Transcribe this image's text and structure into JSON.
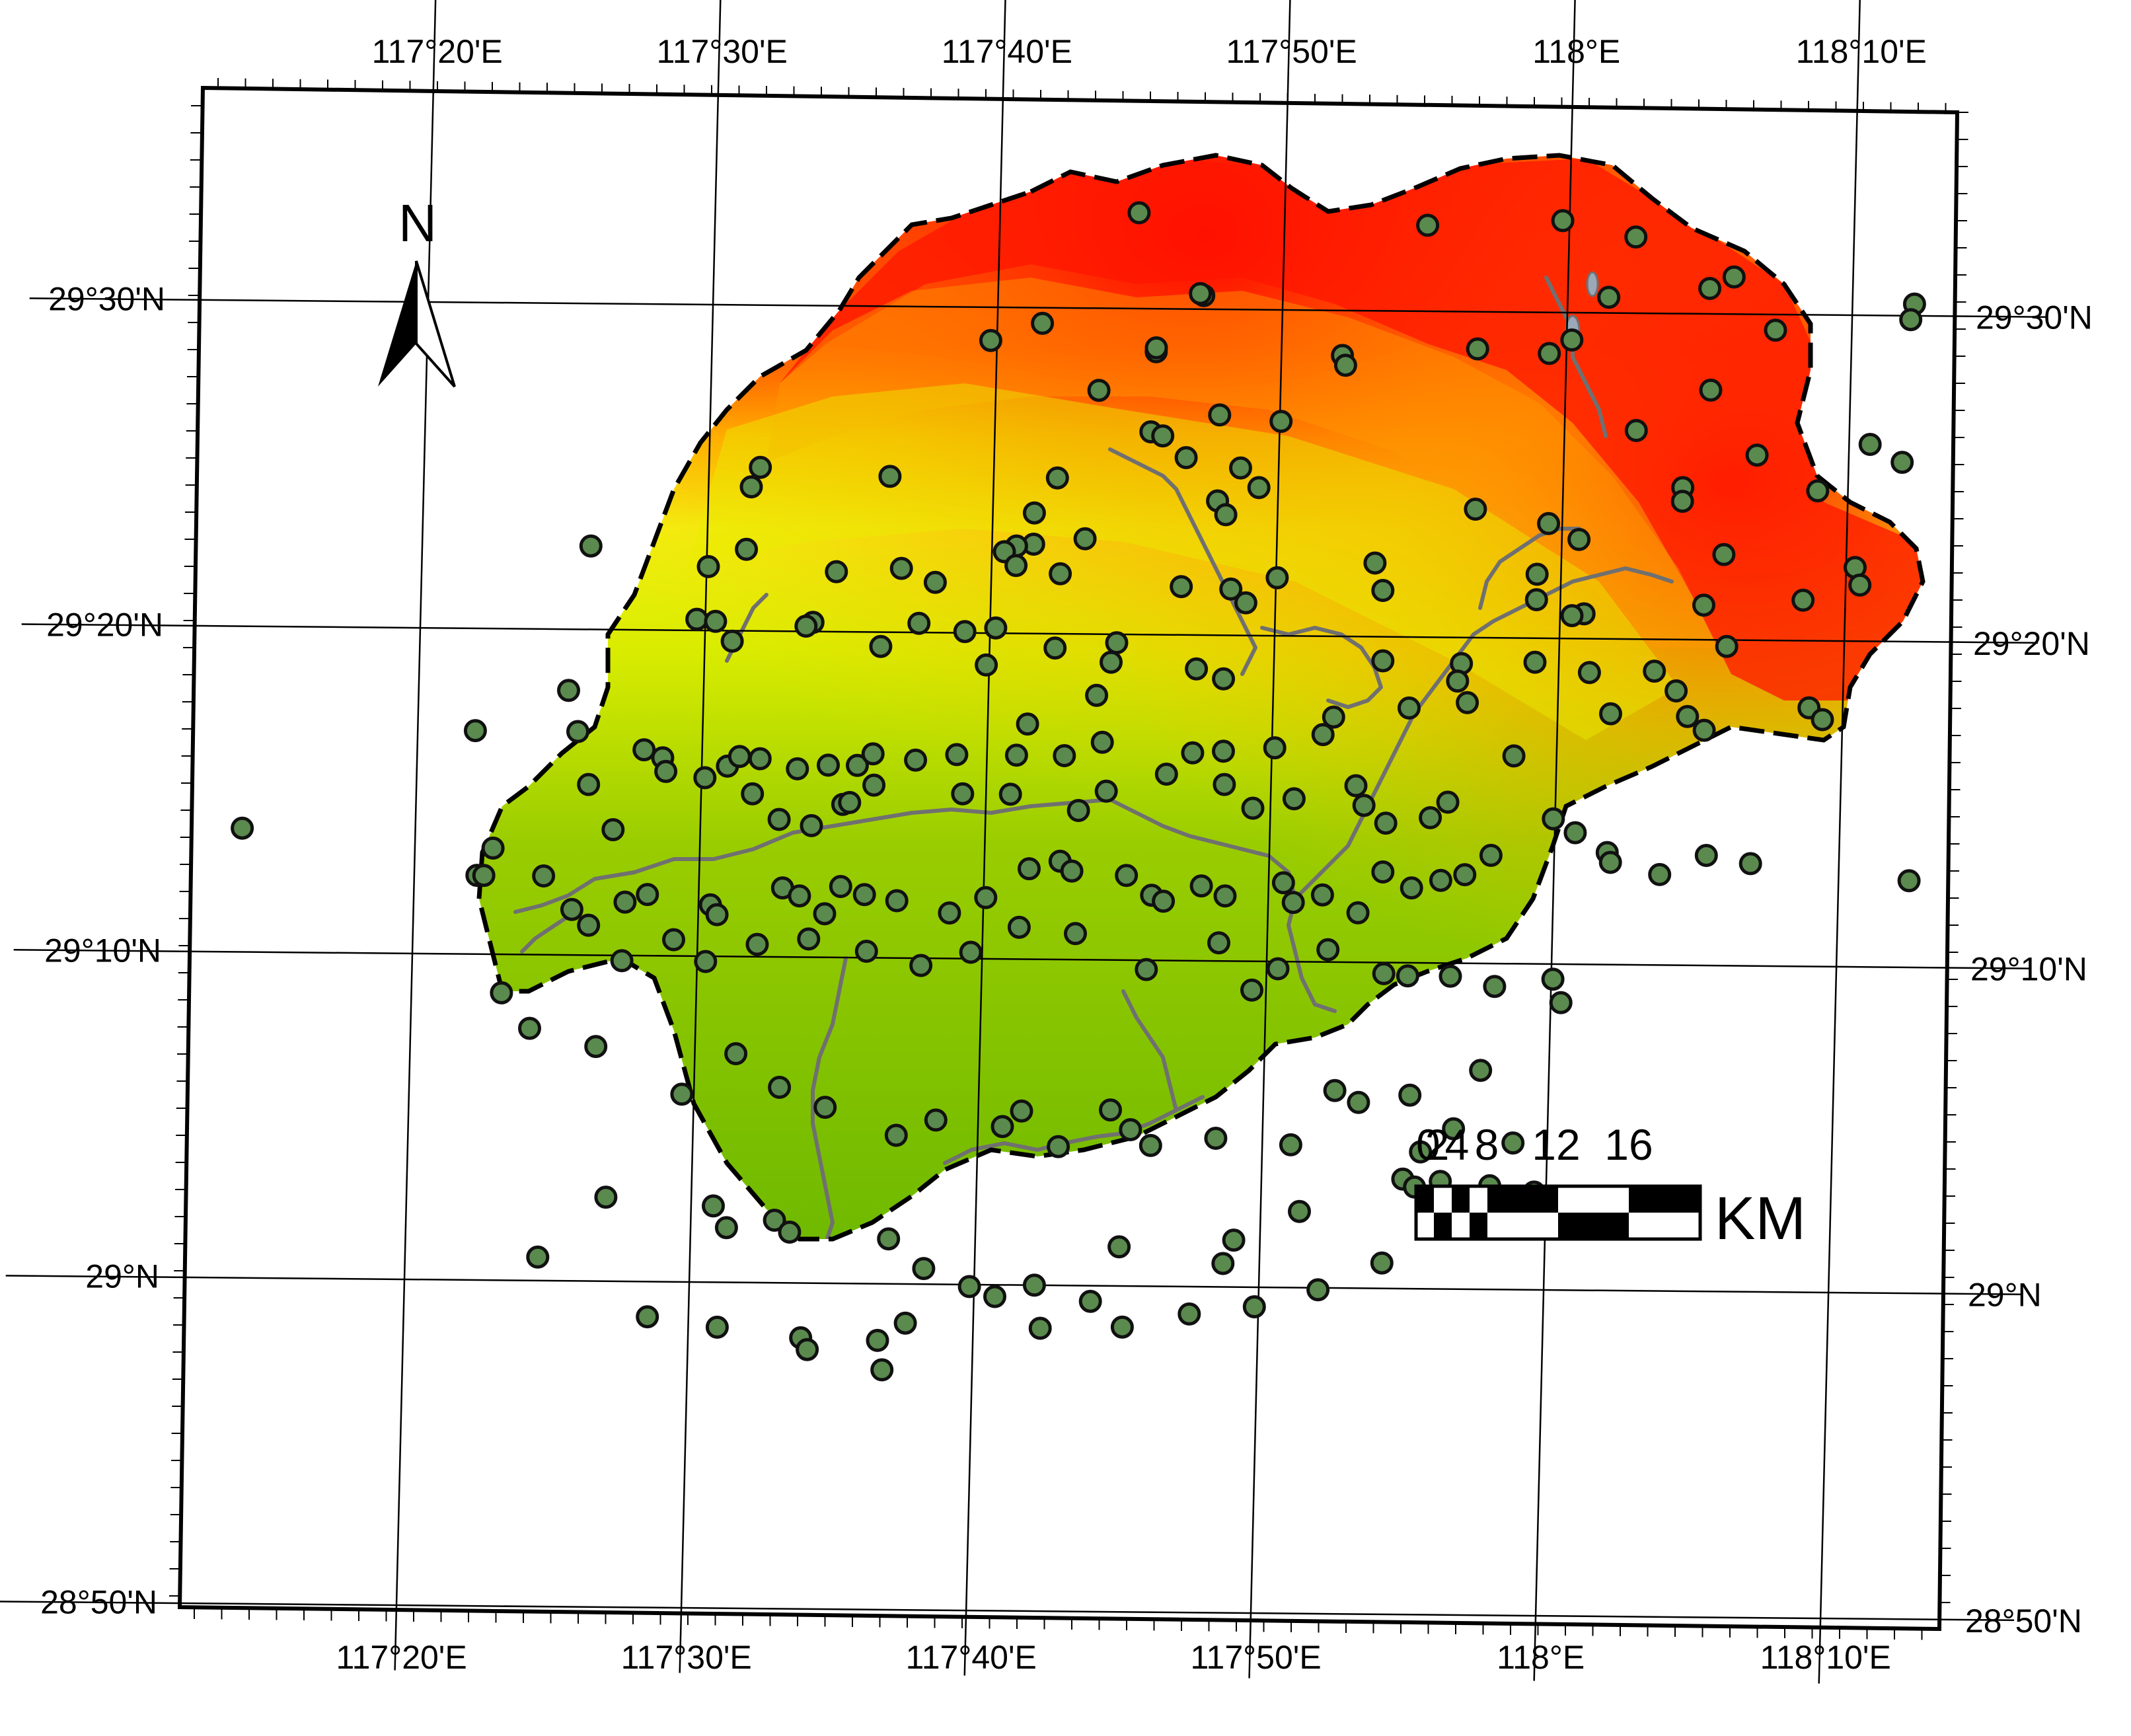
{
  "map": {
    "north_arrow_label": "N",
    "colors": {
      "elev_low": "#6cb800",
      "elev_mid_low": "#a8d400",
      "elev_mid": "#f0f000",
      "elev_high": "#ff9900",
      "elev_peak": "#ff0000",
      "river": "#6e6e6e",
      "point_fill": "#5a8a4e",
      "point_stroke": "#111111",
      "boundary": "#000000"
    },
    "icons": {
      "north_arrow": "north-arrow-icon",
      "sample_point": "circle-marker-icon"
    }
  },
  "grid": {
    "longitudes": [
      {
        "value": 117.3333,
        "label": "117°20'E"
      },
      {
        "value": 117.5,
        "label": "117°30'E"
      },
      {
        "value": 117.6667,
        "label": "117°40'E"
      },
      {
        "value": 117.8333,
        "label": "117°50'E"
      },
      {
        "value": 118.0,
        "label": "118°E"
      },
      {
        "value": 118.1667,
        "label": "118°10'E"
      }
    ],
    "latitudes": [
      {
        "value": 29.5,
        "label": "29°30'N"
      },
      {
        "value": 29.3333,
        "label": "29°20'N"
      },
      {
        "value": 29.1667,
        "label": "29°10'N"
      },
      {
        "value": 29.0,
        "label": "29°N"
      },
      {
        "value": 28.8333,
        "label": "28°50'N"
      }
    ]
  },
  "scale_bar": {
    "tick_labels": [
      "0",
      "2",
      "4",
      "8",
      "12",
      "16"
    ],
    "unit": "KM"
  },
  "sample_points": [
    [
      117.748,
      29.549
    ],
    [
      117.787,
      29.507
    ],
    [
      117.785,
      29.508
    ],
    [
      117.917,
      29.544
    ],
    [
      118.024,
      29.508
    ],
    [
      118.083,
      29.513
    ],
    [
      117.996,
      29.547
    ],
    [
      118.203,
      29.506
    ],
    [
      117.663,
      29.483
    ],
    [
      117.693,
      29.492
    ],
    [
      117.76,
      29.478
    ],
    [
      117.76,
      29.48
    ],
    [
      117.869,
      29.477
    ],
    [
      117.871,
      29.472
    ],
    [
      117.948,
      29.481
    ],
    [
      117.99,
      29.479
    ],
    [
      118.003,
      29.486
    ],
    [
      118.085,
      29.461
    ],
    [
      117.727,
      29.458
    ],
    [
      117.758,
      29.437
    ],
    [
      117.765,
      29.435
    ],
    [
      117.798,
      29.446
    ],
    [
      117.834,
      29.443
    ],
    [
      118.042,
      29.44
    ],
    [
      118.113,
      29.428
    ],
    [
      118.179,
      29.434
    ],
    [
      117.53,
      29.417
    ],
    [
      117.606,
      29.413
    ],
    [
      117.525,
      29.407
    ],
    [
      117.704,
      29.413
    ],
    [
      117.779,
      29.424
    ],
    [
      117.811,
      29.419
    ],
    [
      117.822,
      29.409
    ],
    [
      117.798,
      29.402
    ],
    [
      117.803,
      29.395
    ],
    [
      118.07,
      29.411
    ],
    [
      118.07,
      29.404
    ],
    [
      118.149,
      29.41
    ],
    [
      117.992,
      29.392
    ],
    [
      117.691,
      29.395
    ],
    [
      117.691,
      29.379
    ],
    [
      117.721,
      29.382
    ],
    [
      117.949,
      29.399
    ],
    [
      118.01,
      29.384
    ],
    [
      118.095,
      29.377
    ],
    [
      117.681,
      29.378
    ],
    [
      117.674,
      29.375
    ],
    [
      117.432,
      29.376
    ],
    [
      117.501,
      29.366
    ],
    [
      117.523,
      29.375
    ],
    [
      117.576,
      29.364
    ],
    [
      117.614,
      29.366
    ],
    [
      117.634,
      29.359
    ],
    [
      117.707,
      29.364
    ],
    [
      117.681,
      29.368
    ],
    [
      117.778,
      29.358
    ],
    [
      117.807,
      29.357
    ],
    [
      117.816,
      29.35
    ],
    [
      117.834,
      29.363
    ],
    [
      117.891,
      29.371
    ],
    [
      117.896,
      29.357
    ],
    [
      117.986,
      29.366
    ],
    [
      117.986,
      29.353
    ],
    [
      118.014,
      29.346
    ],
    [
      118.007,
      29.345
    ],
    [
      118.084,
      29.351
    ],
    [
      118.142,
      29.354
    ],
    [
      118.172,
      29.371
    ],
    [
      117.495,
      29.339
    ],
    [
      117.506,
      29.338
    ],
    [
      117.563,
      29.338
    ],
    [
      117.559,
      29.336
    ],
    [
      117.516,
      29.328
    ],
    [
      117.603,
      29.326
    ],
    [
      117.625,
      29.338
    ],
    [
      117.652,
      29.334
    ],
    [
      117.67,
      29.336
    ],
    [
      117.705,
      29.326
    ],
    [
      117.738,
      29.319
    ],
    [
      117.73,
      29.302
    ],
    [
      117.665,
      29.317
    ],
    [
      117.741,
      29.329
    ],
    [
      117.788,
      29.316
    ],
    [
      117.804,
      29.311
    ],
    [
      117.897,
      29.321
    ],
    [
      117.943,
      29.32
    ],
    [
      117.986,
      29.321
    ],
    [
      117.941,
      29.311
    ],
    [
      118.056,
      29.317
    ],
    [
      118.069,
      29.307
    ],
    [
      118.098,
      29.33
    ],
    [
      118.018,
      29.316
    ],
    [
      117.367,
      29.281
    ],
    [
      117.427,
      29.281
    ],
    [
      117.421,
      29.302
    ],
    [
      117.466,
      29.272
    ],
    [
      117.477,
      29.268
    ],
    [
      117.502,
      29.258
    ],
    [
      117.515,
      29.264
    ],
    [
      117.522,
      29.269
    ],
    [
      117.534,
      29.268
    ],
    [
      117.556,
      29.263
    ],
    [
      117.574,
      29.265
    ],
    [
      117.591,
      29.265
    ],
    [
      117.6,
      29.271
    ],
    [
      117.625,
      29.268
    ],
    [
      117.649,
      29.271
    ],
    [
      117.684,
      29.271
    ],
    [
      117.69,
      29.287
    ],
    [
      117.712,
      29.271
    ],
    [
      117.734,
      29.278
    ],
    [
      117.787,
      29.273
    ],
    [
      117.805,
      29.274
    ],
    [
      117.835,
      29.276
    ],
    [
      117.863,
      29.283
    ],
    [
      117.869,
      29.292
    ],
    [
      117.913,
      29.297
    ],
    [
      117.947,
      29.3
    ],
    [
      117.975,
      29.273
    ],
    [
      118.031,
      29.295
    ],
    [
      118.076,
      29.294
    ],
    [
      118.086,
      29.287
    ],
    [
      118.147,
      29.299
    ],
    [
      118.155,
      29.293
    ],
    [
      117.479,
      29.261
    ],
    [
      117.434,
      29.254
    ],
    [
      117.449,
      29.231
    ],
    [
      117.53,
      29.25
    ],
    [
      117.546,
      29.237
    ],
    [
      117.565,
      29.234
    ],
    [
      117.583,
      29.245
    ],
    [
      117.587,
      29.246
    ],
    [
      117.601,
      29.255
    ],
    [
      117.653,
      29.251
    ],
    [
      117.681,
      29.251
    ],
    [
      117.721,
      29.243
    ],
    [
      117.737,
      29.253
    ],
    [
      117.772,
      29.262
    ],
    [
      117.806,
      29.257
    ],
    [
      117.823,
      29.245
    ],
    [
      117.847,
      29.25
    ],
    [
      117.883,
      29.257
    ],
    [
      117.888,
      29.247
    ],
    [
      117.901,
      29.238
    ],
    [
      117.927,
      29.241
    ],
    [
      117.937,
      29.249
    ],
    [
      117.999,
      29.241
    ],
    [
      118.012,
      29.234
    ],
    [
      118.031,
      29.224
    ],
    [
      118.062,
      29.213
    ],
    [
      118.089,
      29.223
    ],
    [
      118.115,
      29.219
    ],
    [
      118.208,
      29.211
    ],
    [
      117.37,
      29.207
    ],
    [
      117.379,
      29.221
    ],
    [
      117.374,
      29.207
    ],
    [
      117.409,
      29.207
    ],
    [
      117.426,
      29.19
    ],
    [
      117.457,
      29.194
    ],
    [
      117.47,
      29.198
    ],
    [
      117.507,
      29.193
    ],
    [
      117.511,
      29.188
    ],
    [
      117.549,
      29.202
    ],
    [
      117.559,
      29.198
    ],
    [
      117.574,
      29.189
    ],
    [
      117.583,
      29.203
    ],
    [
      117.597,
      29.199
    ],
    [
      117.616,
      29.196
    ],
    [
      117.647,
      29.19
    ],
    [
      117.668,
      29.198
    ],
    [
      117.693,
      29.213
    ],
    [
      117.711,
      29.217
    ],
    [
      117.718,
      29.212
    ],
    [
      117.75,
      29.21
    ],
    [
      117.765,
      29.2
    ],
    [
      117.772,
      29.197
    ],
    [
      117.794,
      29.205
    ],
    [
      117.808,
      29.2
    ],
    [
      117.842,
      29.207
    ],
    [
      117.848,
      29.197
    ],
    [
      117.865,
      29.201
    ],
    [
      117.886,
      29.192
    ],
    [
      117.9,
      29.213
    ],
    [
      117.917,
      29.205
    ],
    [
      117.934,
      29.209
    ],
    [
      117.948,
      29.212
    ],
    [
      117.963,
      29.222
    ],
    [
      118.033,
      29.219
    ],
    [
      117.436,
      29.182
    ],
    [
      117.456,
      29.164
    ],
    [
      117.486,
      29.175
    ],
    [
      117.505,
      29.164
    ],
    [
      117.535,
      29.173
    ],
    [
      117.565,
      29.176
    ],
    [
      117.599,
      29.17
    ],
    [
      117.631,
      29.163
    ],
    [
      117.66,
      29.17
    ],
    [
      117.688,
      29.183
    ],
    [
      117.721,
      29.18
    ],
    [
      117.763,
      29.162
    ],
    [
      117.805,
      29.176
    ],
    [
      117.825,
      29.152
    ],
    [
      117.84,
      29.163
    ],
    [
      117.869,
      29.173
    ],
    [
      117.902,
      29.161
    ],
    [
      117.916,
      29.16
    ],
    [
      117.941,
      29.16
    ],
    [
      117.967,
      29.155
    ],
    [
      118.001,
      29.159
    ],
    [
      118.006,
      29.147
    ],
    [
      117.386,
      29.147
    ],
    [
      117.403,
      29.129
    ],
    [
      117.442,
      29.12
    ],
    [
      117.493,
      29.096
    ],
    [
      117.524,
      29.117
    ],
    [
      117.55,
      29.1
    ],
    [
      117.577,
      29.09
    ],
    [
      117.619,
      29.076
    ],
    [
      117.642,
      29.084
    ],
    [
      117.681,
      29.081
    ],
    [
      117.692,
      29.089
    ],
    [
      117.714,
      29.071
    ],
    [
      117.744,
      29.09
    ],
    [
      117.756,
      29.08
    ],
    [
      117.768,
      29.072
    ],
    [
      117.806,
      29.076
    ],
    [
      117.85,
      29.073
    ],
    [
      117.875,
      29.101
    ],
    [
      117.889,
      29.095
    ],
    [
      117.919,
      29.099
    ],
    [
      117.96,
      29.112
    ],
    [
      117.926,
      29.07
    ],
    [
      117.945,
      29.082
    ],
    [
      117.98,
      29.075
    ],
    [
      117.45,
      29.043
    ],
    [
      117.513,
      29.039
    ],
    [
      117.521,
      29.028
    ],
    [
      117.549,
      29.032
    ],
    [
      117.558,
      29.026
    ],
    [
      117.616,
      29.023
    ],
    [
      117.637,
      29.008
    ],
    [
      117.664,
      28.999
    ],
    [
      117.702,
      29.0
    ],
    [
      117.735,
      28.992
    ],
    [
      117.751,
      29.02
    ],
    [
      117.812,
      29.012
    ],
    [
      117.818,
      29.024
    ],
    [
      117.856,
      29.039
    ],
    [
      117.916,
      29.056
    ],
    [
      117.923,
      29.052
    ],
    [
      117.938,
      29.055
    ],
    [
      117.967,
      29.053
    ],
    [
      117.993,
      29.05
    ],
    [
      117.476,
      28.982
    ],
    [
      117.517,
      28.977
    ],
    [
      117.566,
      28.972
    ],
    [
      117.57,
      28.966
    ],
    [
      117.611,
      28.971
    ],
    [
      117.627,
      28.98
    ],
    [
      117.679,
      28.994
    ],
    [
      117.706,
      28.978
    ],
    [
      117.754,
      28.979
    ],
    [
      117.793,
      28.986
    ],
    [
      117.831,
      28.99
    ],
    [
      117.868,
      28.999
    ],
    [
      117.905,
      29.013
    ],
    [
      117.614,
      28.956
    ],
    [
      117.232,
      29.23
    ],
    [
      117.411,
      29.012
    ],
    [
      118.201,
      29.498
    ],
    [
      118.198,
      29.425
    ],
    [
      118.175,
      29.362
    ],
    [
      118.122,
      29.492
    ],
    [
      118.097,
      29.519
    ],
    [
      118.039,
      29.539
    ]
  ]
}
